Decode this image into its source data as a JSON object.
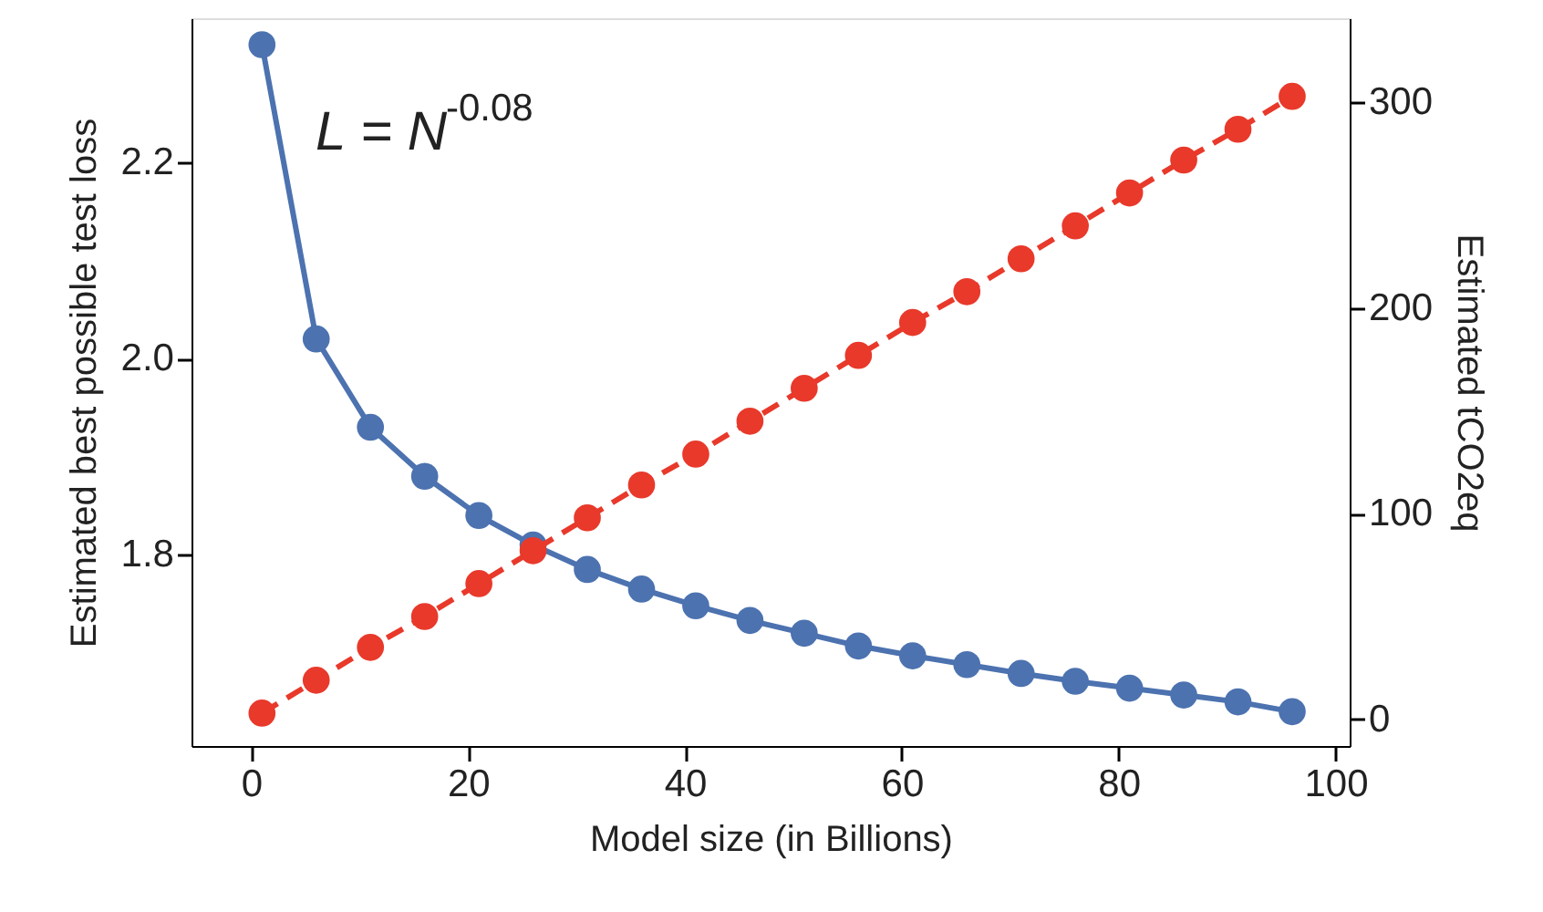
{
  "chart_data": {
    "type": "line",
    "xlabel": "Model size (in Billions)",
    "ylabel": "Estimated best possible test loss",
    "y2label": "Estimated tCO2eq",
    "x": [
      1,
      6,
      11,
      16,
      21,
      26,
      31,
      36,
      41,
      46,
      51,
      56,
      61,
      66,
      71,
      76,
      81,
      86,
      91,
      96
    ],
    "series": [
      {
        "color": "#4c72b0",
        "line_style": "solid",
        "values": [
          2.32,
          2.02,
          1.93,
          1.88,
          1.84,
          1.81,
          1.785,
          1.765,
          1.748,
          1.733,
          1.72,
          1.707,
          1.697,
          1.688,
          1.679,
          1.671,
          1.664,
          1.657,
          1.65,
          1.64
        ]
      },
      {
        "color": "#e8392b",
        "line_style": "dashed",
        "axis": "y2",
        "values": [
          3,
          19,
          35,
          50,
          66,
          82,
          98,
          114,
          129,
          145,
          161,
          177,
          193,
          208,
          224,
          240,
          256,
          272,
          287,
          303
        ]
      }
    ],
    "marker": "circle",
    "grid": false,
    "xlim": [
      -5.5,
      101.3
    ],
    "xticks": [
      0,
      20,
      40,
      60,
      80,
      100
    ],
    "ylim": [
      1.605,
      2.347
    ],
    "yticks": [
      1.8,
      {
        "value": 2.0,
        "label": "2.0"
      },
      2.2
    ],
    "y2lim": [
      -13,
      341
    ],
    "y2ticks": [
      0,
      100,
      200,
      300
    ],
    "annotations": [
      "L = N$^{-0.08}$"
    ]
  }
}
